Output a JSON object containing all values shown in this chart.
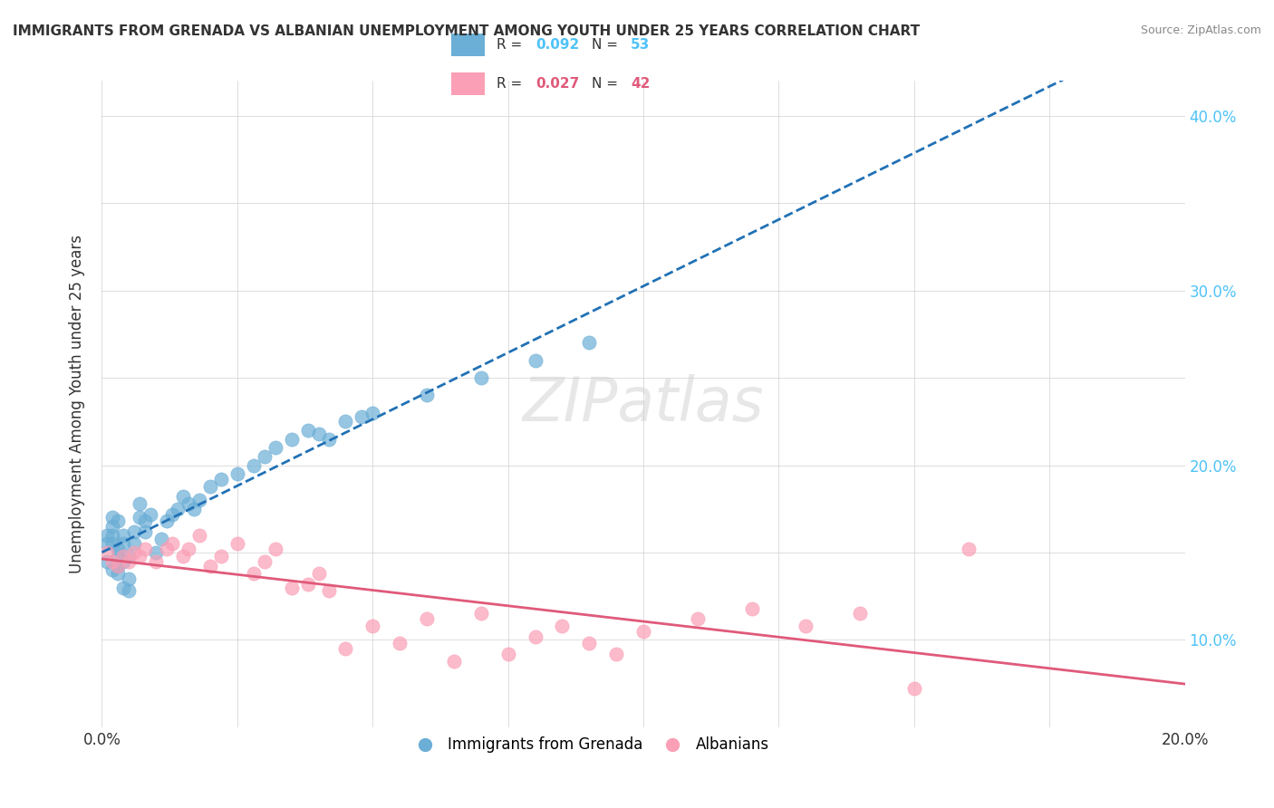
{
  "title": "IMMIGRANTS FROM GRENADA VS ALBANIAN UNEMPLOYMENT AMONG YOUTH UNDER 25 YEARS CORRELATION CHART",
  "source": "Source: ZipAtlas.com",
  "xlabel": "",
  "ylabel": "Unemployment Among Youth under 25 years",
  "xlim": [
    0.0,
    0.2
  ],
  "ylim": [
    0.05,
    0.42
  ],
  "xticks": [
    0.0,
    0.025,
    0.05,
    0.075,
    0.1,
    0.125,
    0.15,
    0.175,
    0.2
  ],
  "xticklabels": [
    "0.0%",
    "",
    "",
    "",
    "",
    "",
    "",
    "",
    "20.0%"
  ],
  "yticks_left": [
    0.1,
    0.15,
    0.2,
    0.25,
    0.3,
    0.35,
    0.4
  ],
  "yticks_right": [
    0.1,
    0.2,
    0.3,
    0.4
  ],
  "yticklabels_right": [
    "10.0%",
    "20.0%",
    "30.0%",
    "40.0%"
  ],
  "R_blue": 0.092,
  "N_blue": 53,
  "R_pink": 0.027,
  "N_pink": 42,
  "blue_color": "#6baed6",
  "pink_color": "#fa9fb5",
  "blue_line_color": "#2171b5",
  "pink_line_color": "#e05a7a",
  "watermark": "ZIPatlas",
  "legend_label_blue": "Immigrants from Grenada",
  "legend_label_pink": "Albanians",
  "blue_x": [
    0.001,
    0.001,
    0.001,
    0.002,
    0.002,
    0.002,
    0.002,
    0.002,
    0.003,
    0.003,
    0.003,
    0.003,
    0.003,
    0.004,
    0.004,
    0.004,
    0.004,
    0.005,
    0.005,
    0.005,
    0.006,
    0.006,
    0.007,
    0.007,
    0.008,
    0.008,
    0.009,
    0.01,
    0.011,
    0.012,
    0.013,
    0.014,
    0.015,
    0.016,
    0.017,
    0.018,
    0.02,
    0.022,
    0.025,
    0.028,
    0.03,
    0.032,
    0.035,
    0.038,
    0.04,
    0.042,
    0.045,
    0.048,
    0.05,
    0.06,
    0.07,
    0.08,
    0.09
  ],
  "blue_y": [
    0.145,
    0.155,
    0.16,
    0.14,
    0.155,
    0.16,
    0.165,
    0.17,
    0.138,
    0.142,
    0.148,
    0.152,
    0.168,
    0.13,
    0.145,
    0.155,
    0.16,
    0.128,
    0.135,
    0.148,
    0.155,
    0.162,
    0.17,
    0.178,
    0.162,
    0.168,
    0.172,
    0.15,
    0.158,
    0.168,
    0.172,
    0.175,
    0.182,
    0.178,
    0.175,
    0.18,
    0.188,
    0.192,
    0.195,
    0.2,
    0.205,
    0.21,
    0.215,
    0.22,
    0.218,
    0.215,
    0.225,
    0.228,
    0.23,
    0.24,
    0.25,
    0.26,
    0.27
  ],
  "pink_x": [
    0.001,
    0.002,
    0.003,
    0.004,
    0.005,
    0.006,
    0.007,
    0.008,
    0.01,
    0.012,
    0.013,
    0.015,
    0.016,
    0.018,
    0.02,
    0.022,
    0.025,
    0.028,
    0.03,
    0.032,
    0.035,
    0.038,
    0.04,
    0.042,
    0.045,
    0.05,
    0.055,
    0.06,
    0.065,
    0.07,
    0.075,
    0.08,
    0.085,
    0.09,
    0.095,
    0.1,
    0.11,
    0.12,
    0.13,
    0.14,
    0.15,
    0.16
  ],
  "pink_y": [
    0.15,
    0.145,
    0.142,
    0.148,
    0.145,
    0.15,
    0.148,
    0.152,
    0.145,
    0.152,
    0.155,
    0.148,
    0.152,
    0.16,
    0.142,
    0.148,
    0.155,
    0.138,
    0.145,
    0.152,
    0.13,
    0.132,
    0.138,
    0.128,
    0.095,
    0.108,
    0.098,
    0.112,
    0.088,
    0.115,
    0.092,
    0.102,
    0.108,
    0.098,
    0.092,
    0.105,
    0.112,
    0.118,
    0.108,
    0.115,
    0.072,
    0.152
  ]
}
